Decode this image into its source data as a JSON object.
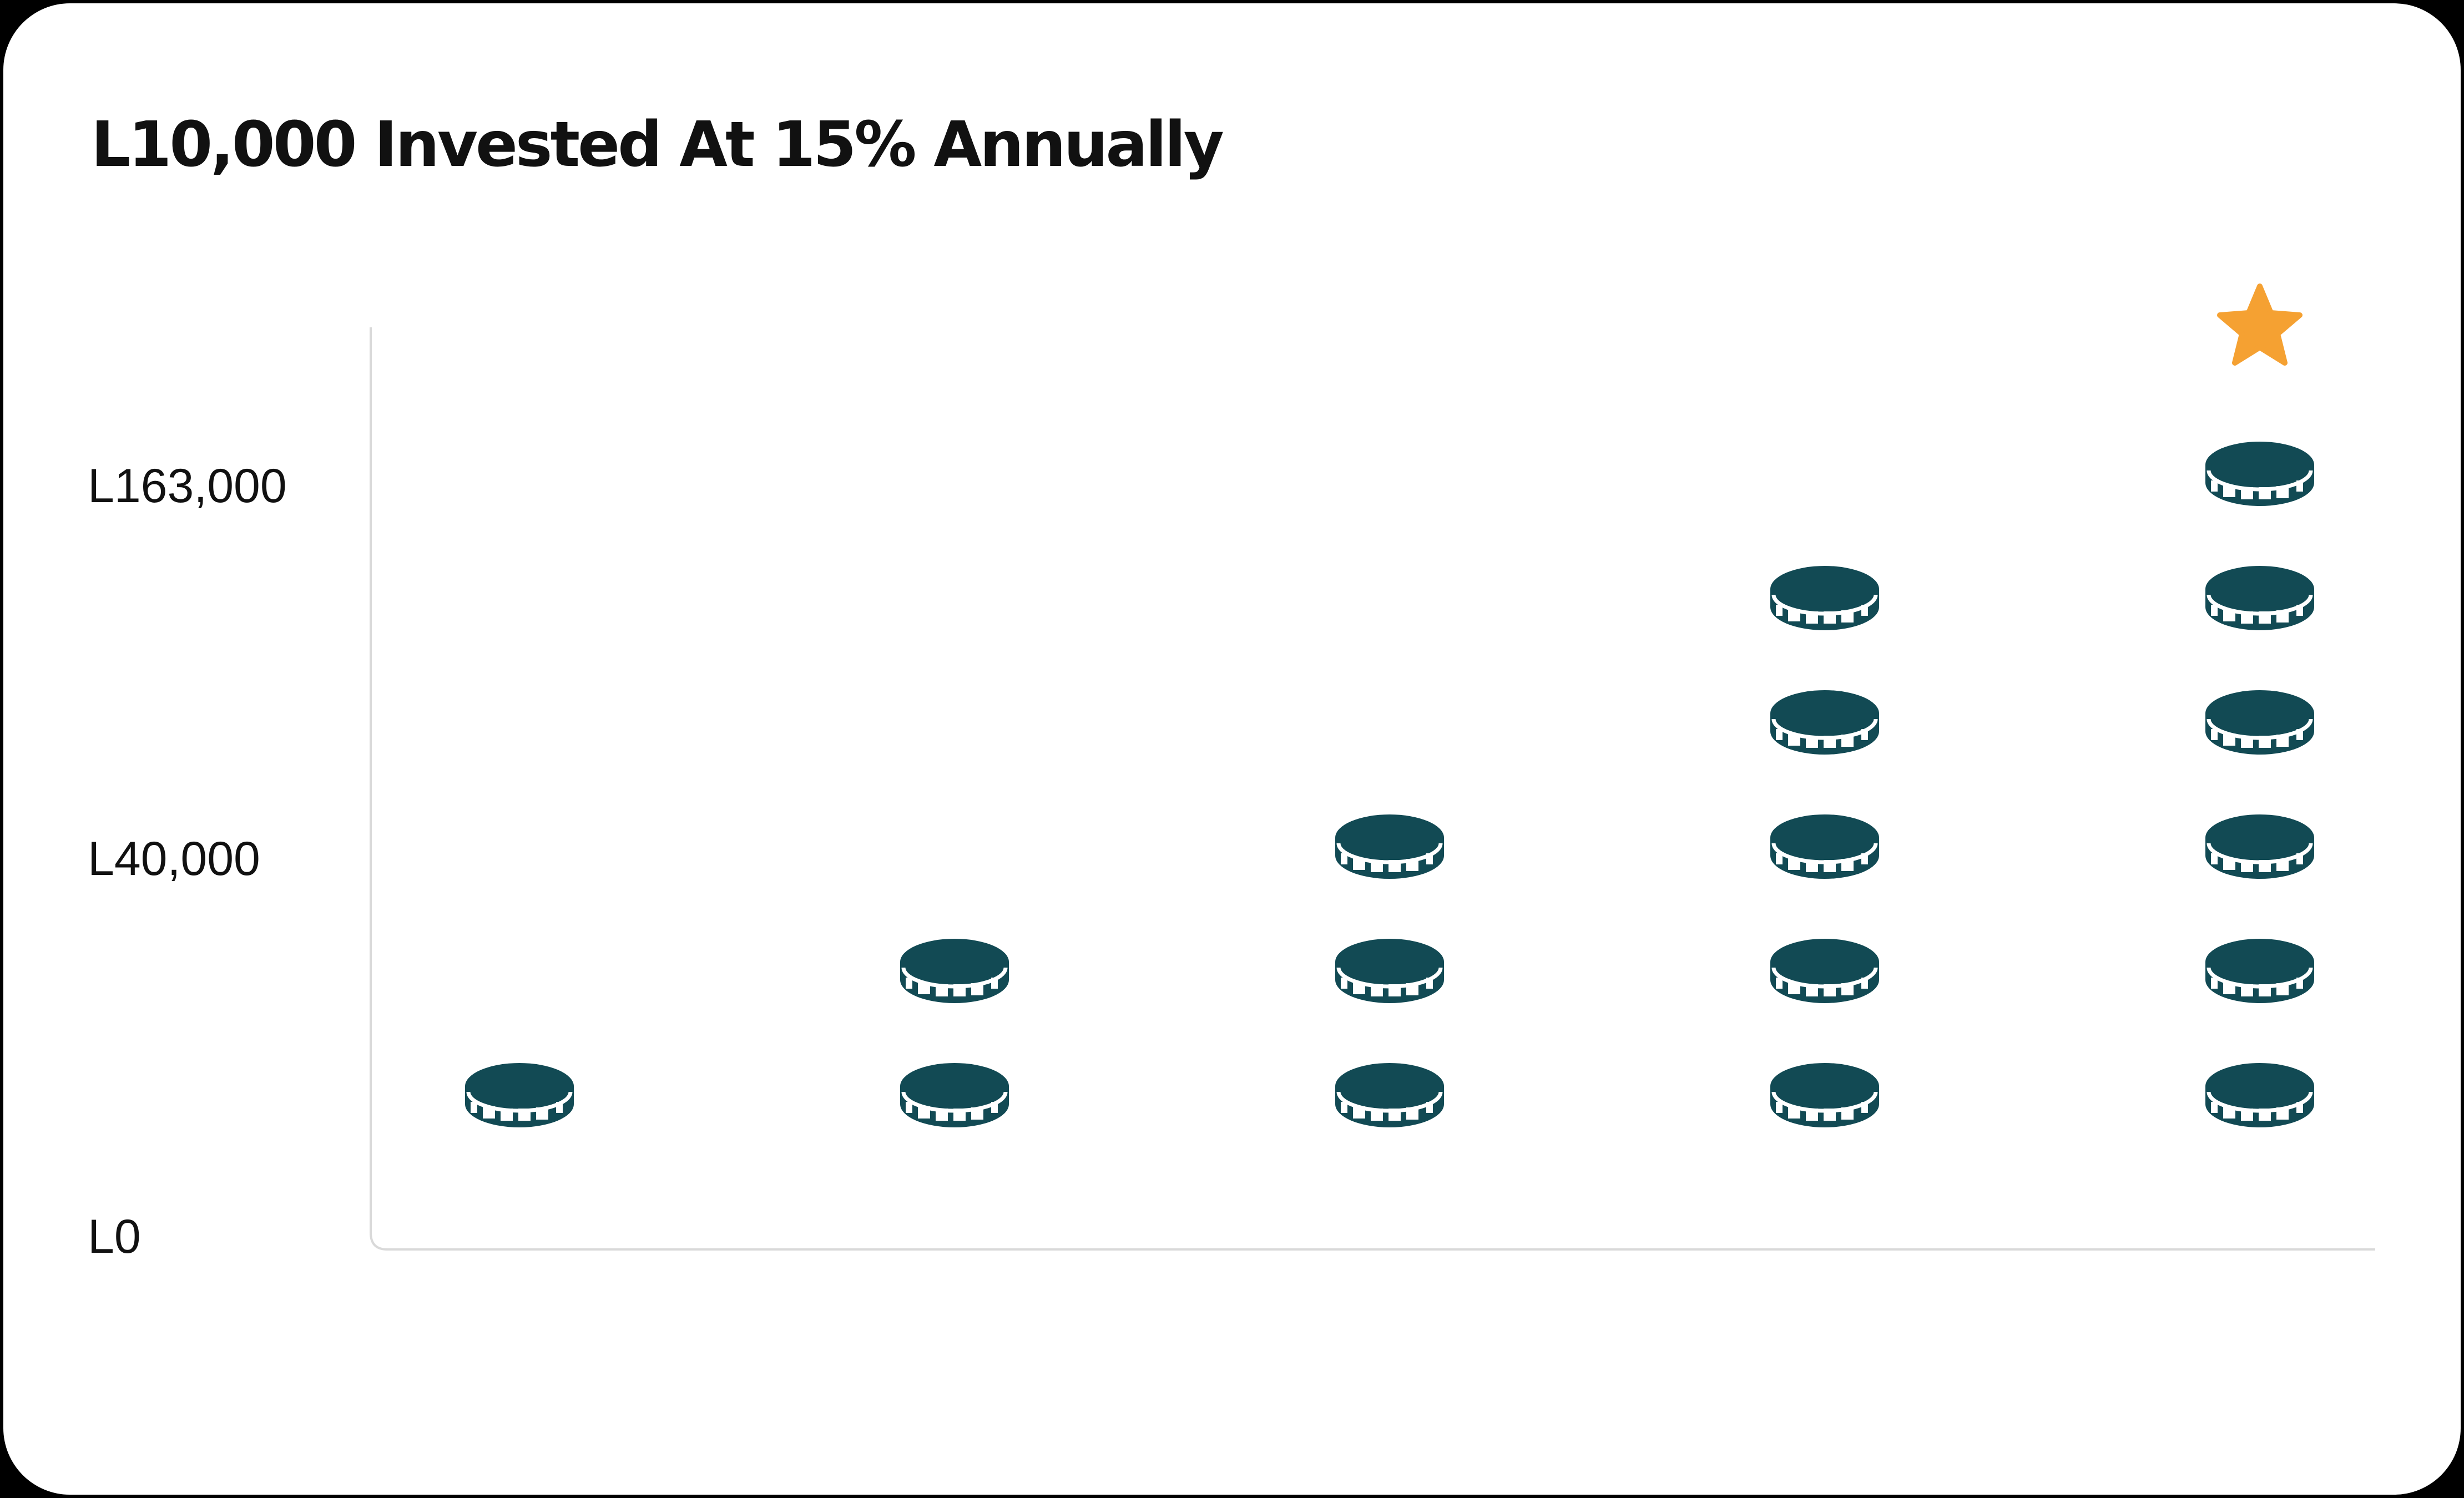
{
  "chart_data": {
    "type": "bar",
    "title": "L10,000 Invested At 15% Annually",
    "xlabel": "",
    "ylabel": "",
    "y_ticks": [
      "L163,000",
      "L40,000",
      "L0"
    ],
    "categories": [
      "",
      "",
      "",
      "",
      ""
    ],
    "values": [
      1,
      2,
      3,
      5,
      6
    ],
    "unit": "coin",
    "highlight": {
      "index": 4,
      "marker": "star-icon"
    },
    "grid": false,
    "colors": {
      "coin": "#124a54",
      "star": "#f5a132",
      "axis": "#d9d9d9",
      "text": "#111111"
    }
  }
}
